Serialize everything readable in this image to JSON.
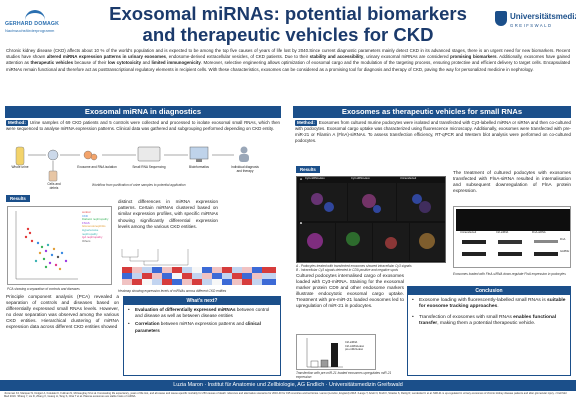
{
  "header": {
    "left_logo": {
      "name": "GERHARD DOMAGK",
      "sub": "Nachwuchsförderprogramm"
    },
    "title_line1": "Exosomal miRNAs: potential biomarkers",
    "title_line2": "and therapeutic vehicles for CKD",
    "right_logo": {
      "name": "Universitätsmedizin",
      "sub": "GREIFSWALD"
    }
  },
  "intro": {
    "p1": "Chronic kidney disease (CKD) affects about 10 % of the world's population and is expected to be among the top five causes of years of life lost by 2040.",
    "p2": "Since current diagnostic parameters mainly detect CKD in its advanced stages, there is an urgent need for new biomarkers. Recent studies have shown ",
    "p2b": "altered miRNA expression patterns in urinary exosomes",
    "p2c": ", endosome-derived extracellular vesicles, of CKD patients.",
    "p3": " Due to their ",
    "p3b": "stability and accessibility",
    "p3c": ", urinary exosomal miRNAs are considered ",
    "p3d": "promising biomarkers",
    "p3e": ". Additionally, exosomes have gained attention as ",
    "p3f": "therapeutic vehicles",
    "p3g": " because of their ",
    "p3h": "low cytotoxicity",
    "p3i": " and ",
    "p3j": "limited immunogenicity",
    "p3k": ". Moreover, selective engineering allows optimization of exosomal cargo and the modulation of the targeting process, ensuring protective and efficient delivery to target cells. Encapsulated miRNAs remain functional and therefore act as posttranscriptional regulatory elements in recipient cells. With these characteristics, exosomes can be considered as a promising tool for diagnosis and therapy of CKD, paving the way for personalized medicine in nephrology."
  },
  "left": {
    "heading": "Exosomal miRNA in diagnostics",
    "method_label": "Method:",
    "method_text": "Urine samples of 69 CKD patients and 5 controls were collected and processed to isolate exosomal small RNAs, which then were sequenced to analyse miRNA expression patterns. Clinical data was gathered and subgrouping performed depending on CKD entity.",
    "workflow": {
      "steps": [
        "Whole urine",
        "Exosome and RNA isolation",
        "Small RNA Sequencing",
        "Bioinformatics",
        "Individual diagnosis and therapy"
      ],
      "extra": "Cells and debris",
      "caption": "Workflow from purification of urine samples to potential application"
    },
    "results_label": "Results",
    "results_text": "distinct differences in miRNA expression patterns. Certain miRNAs clustered based on similar expression profiles, with specific miRNAs showing significantly differential expression levels among the various CKD entities.",
    "pca_caption": "PCA showing a separation of controls and diseases",
    "pca_legend": [
      "control",
      "CKD",
      "Diabetic nephropathy",
      "FSGS",
      "Glomerulonephritis",
      "Hypertensive nephropathy",
      "IgA nephropathy",
      "Others"
    ],
    "heat_caption": "Heatmap showing expression levels of miRNAs across different CKD entities",
    "pca_text": "Principle component analysis (PCA) revealed a separation of controls and diseases based on differentially expressed small RNAs levels. However, no clear separation was observed among the various CKD entities. Hierarchical clustering of miRNA expression data across different CKD entities showed",
    "whats_new": {
      "heading": "What's next?",
      "b1_a": "Evaluation of differentially expressed miRNAs",
      "b1_b": " between control and disease as well as between disease entities",
      "b2_a": "Correlation",
      "b2_b": " between miRNA expression patterns and ",
      "b2_c": "clinical parameters"
    }
  },
  "right": {
    "heading": "Exosomes as therapeutic vehicles for small RNAs",
    "method_label": "Method:",
    "method_text": "Exosomes from cultured murine podocytes were isolated and transfected with Cy3-labelled miRNA or siRNA and then co-cultured with podocytes. Exosomal cargo uptake was characterized using fluorescence microscopy. Additionally, exosomes were transfected with pre-miR-21 or Filamin A (FlnA)-siRNAs. To assess transfection efficiency, RT-qPCR and Western blot analysis were performed on co-cultured podocytes.",
    "results_label": "Results",
    "micro_caption_a": "A - Podocytes treated with transfected exosomes showed intracellular Cy3 signals",
    "micro_caption_b": "B - Intracellular Cy3 signals detected in CD9-positive and negative spots",
    "micro_labels": [
      "Cy3-miRNA+Exo",
      "Cy3-siRNA+Exo",
      "Untransfected"
    ],
    "micro_panel_letters": [
      "A",
      "B"
    ],
    "results_text": "Cultured podocytes internalised cargo of exosomes loaded with Cy3-miRNA. Staining for the exosomal marker protein CD9 and other endosome markers illustrate endocytotic exosomal cargo uptake. Treatment with pre-miR-21 loaded exosomes led to upregulation of miR-21 in podocytes.",
    "bar_caption": "Transfection with pre-miR-21 loaded exosomes upregulates miR-21 expression",
    "bar_legend": [
      "Ctrl-siRNA",
      "Ctrl-miRNA+Exo",
      "pre-miR21+Exo"
    ],
    "wb_text_a": "The treatment of cultured podocytes with exosomes transfected with FlnA-siRNA resulted in internalisation and subsequent downregulation of FlnA protein expression.",
    "wb_labels": [
      "Untransfected",
      "Ctrl-siRNA",
      "FlnA-siRNA"
    ],
    "wb_rows": [
      "FlnA",
      "GAPDH"
    ],
    "wb_caption": "Exosomes loaded with FlnA-siRNA down-regulate FlnA expression in podocytes",
    "conclusion": {
      "heading": "Conclusion",
      "b1_a": "Exosome loading with fluorescently-labelled small RNAs is ",
      "b1_b": "suitable for exosome tracking approaches",
      "b1_c": ".",
      "b2_a": "Transfection of exosomes with small RNAs ",
      "b2_b": "enables functional transfer",
      "b2_c": ", making them a potential therapeutic vehicle."
    }
  },
  "footer": {
    "author": "Luzia Maron · Institut für Anatomie und Zellbiologie, AG Endlich · Universitätsmedizin Greifswald",
    "refs": "¹Foreman KJ, Marquez N, Dolgert A, Fukutaki K, Fullman N, McGaughey M et al. Forecasting life expectancy, years of life lost, and all-cause and cause-specific mortality for 250 causes of death: reference and alternative scenarios for 2016-40 for 195 countries and territories. Lancet (London, England) 2018. ²Lange T, Artelt N, Kindt F, Stracke S, Rettig R, Lendeckel U et al. MiR-21 is up-regulated in urinary exosomes of chronic kidney disease patients and after glomerular injury. J Cell Mol Med 2019. ³Zhang Y, Liu D, Zhang X, Guang H, Tang S, Chai T et al. Plasma exosomes are stable hosts of miRNA."
  },
  "colors": {
    "brand": "#1b4f8a",
    "title": "#1b3a6b"
  }
}
